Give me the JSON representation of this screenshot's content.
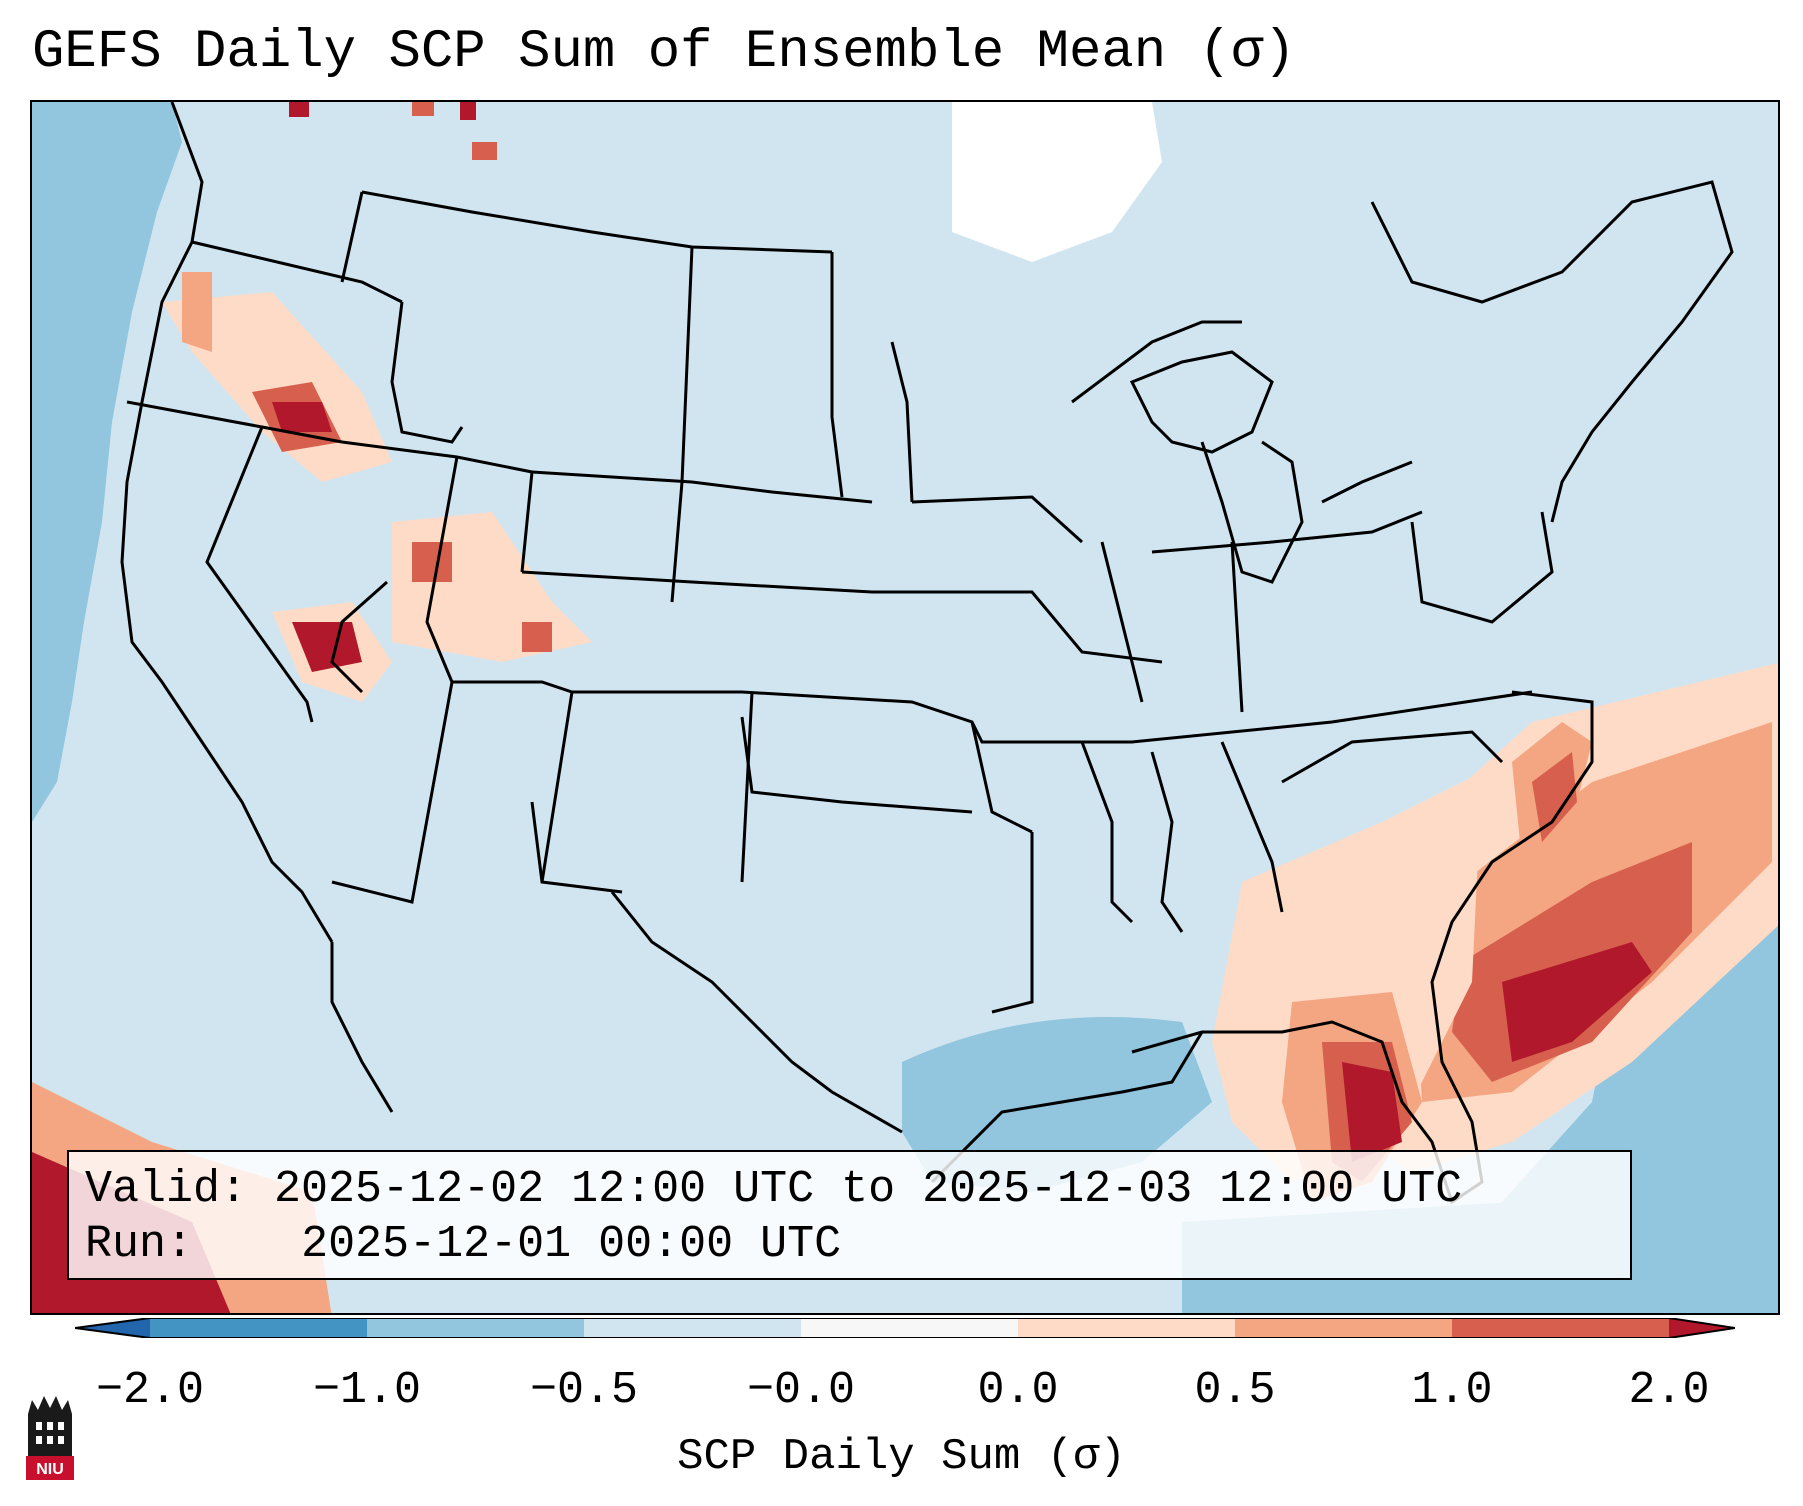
{
  "title": "GEFS Daily SCP Sum of Ensemble Mean (σ)",
  "map": {
    "description_icon": "map-icon",
    "colors": {
      "background": "#d1e5f0",
      "ocean_light": "#92c5de",
      "pale_red": "#fddbc7",
      "light_red": "#f4a582",
      "mid_red": "#d6604d",
      "dark_red": "#b2182b",
      "white": "#ffffff"
    }
  },
  "info": {
    "valid_label": "Valid:",
    "valid_value": "2025-12-02 12:00 UTC to 2025-12-03 12:00 UTC",
    "run_label": "Run:",
    "run_value": "2025-12-01 00:00 UTC"
  },
  "colorbar": {
    "label": "SCP Daily Sum (σ)",
    "ticks": [
      "−2.0",
      "−1.0",
      "−0.5",
      "−0.0",
      "0.0",
      "0.5",
      "1.0",
      "2.0"
    ],
    "colors": [
      "#4393c3",
      "#92c5de",
      "#d1e5f0",
      "#f7f7f7",
      "#fddbc7",
      "#f4a582",
      "#d6604d",
      "#b2182b"
    ],
    "extend_low_color": "#2166ac",
    "extend_high_color": "#b2182b"
  },
  "logo": {
    "text": "NIU",
    "icon": "niu-logo-icon"
  }
}
